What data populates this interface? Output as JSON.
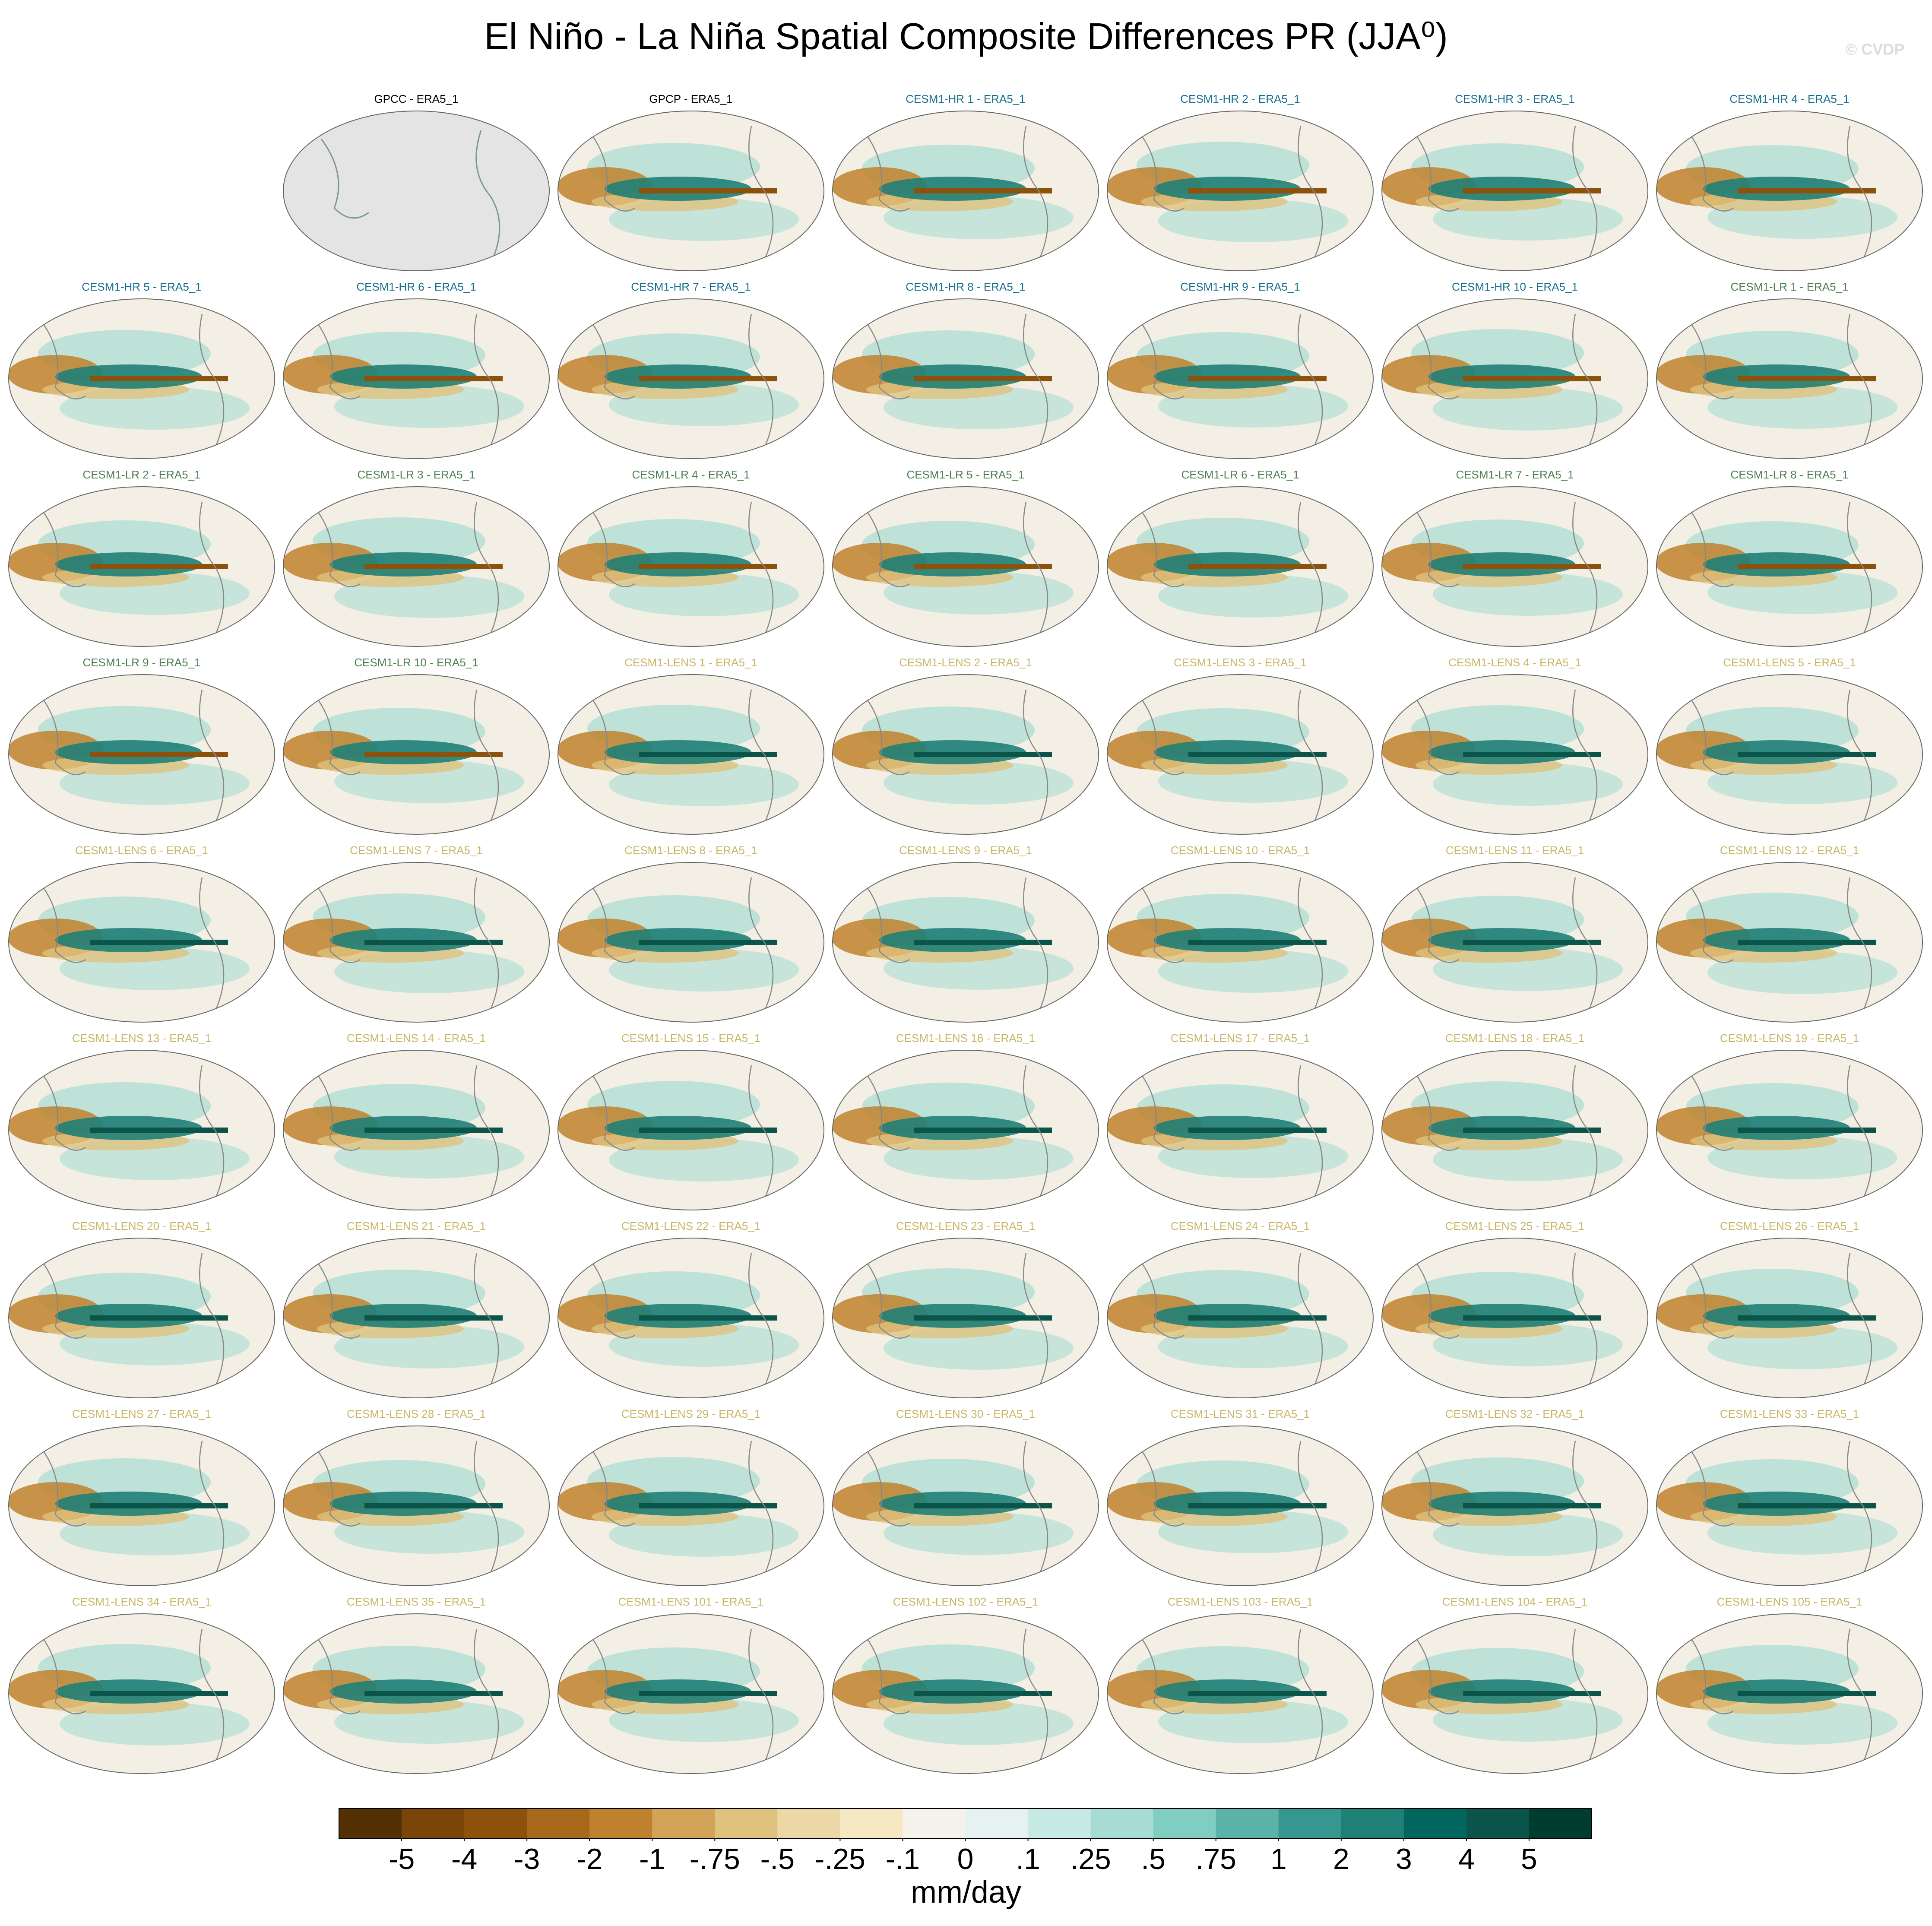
{
  "chart_data": {
    "type": "map-panels",
    "title": "El Niño - La Niña Spatial Composite Differences PR (JJA⁰)",
    "watermark": "© CVDP",
    "panels": [
      {
        "title": "GPCC - ERA5_1",
        "color": "#000000"
      },
      {
        "title": "GPCP - ERA5_1",
        "color": "#000000"
      },
      {
        "title": "CESM1-HR 1 - ERA5_1",
        "color": "#17708f"
      },
      {
        "title": "CESM1-HR 2 - ERA5_1",
        "color": "#17708f"
      },
      {
        "title": "CESM1-HR 3 - ERA5_1",
        "color": "#17708f"
      },
      {
        "title": "CESM1-HR 4 - ERA5_1",
        "color": "#17708f"
      },
      {
        "title": "CESM1-HR 5 - ERA5_1",
        "color": "#17708f"
      },
      {
        "title": "CESM1-HR 6 - ERA5_1",
        "color": "#17708f"
      },
      {
        "title": "CESM1-HR 7 - ERA5_1",
        "color": "#17708f"
      },
      {
        "title": "CESM1-HR 8 - ERA5_1",
        "color": "#17708f"
      },
      {
        "title": "CESM1-HR 9 - ERA5_1",
        "color": "#17708f"
      },
      {
        "title": "CESM1-HR 10 - ERA5_1",
        "color": "#17708f"
      },
      {
        "title": "CESM1-LR 1 - ERA5_1",
        "color": "#4f7f50"
      },
      {
        "title": "CESM1-LR 2 - ERA5_1",
        "color": "#4f7f50"
      },
      {
        "title": "CESM1-LR 3 - ERA5_1",
        "color": "#4f7f50"
      },
      {
        "title": "CESM1-LR 4 - ERA5_1",
        "color": "#4f7f50"
      },
      {
        "title": "CESM1-LR 5 - ERA5_1",
        "color": "#4f7f50"
      },
      {
        "title": "CESM1-LR 6 - ERA5_1",
        "color": "#4f7f50"
      },
      {
        "title": "CESM1-LR 7 - ERA5_1",
        "color": "#4f7f50"
      },
      {
        "title": "CESM1-LR 8 - ERA5_1",
        "color": "#4f7f50"
      },
      {
        "title": "CESM1-LR 9 - ERA5_1",
        "color": "#4f7f50"
      },
      {
        "title": "CESM1-LR 10 - ERA5_1",
        "color": "#4f7f50"
      },
      {
        "title": "CESM1-LENS 1 - ERA5_1",
        "color": "#c9b767"
      },
      {
        "title": "CESM1-LENS 2 - ERA5_1",
        "color": "#c9b767"
      },
      {
        "title": "CESM1-LENS 3 - ERA5_1",
        "color": "#c9b767"
      },
      {
        "title": "CESM1-LENS 4 - ERA5_1",
        "color": "#c9b767"
      },
      {
        "title": "CESM1-LENS 5 - ERA5_1",
        "color": "#c9b767"
      },
      {
        "title": "CESM1-LENS 6 - ERA5_1",
        "color": "#c9b767"
      },
      {
        "title": "CESM1-LENS 7 - ERA5_1",
        "color": "#c9b767"
      },
      {
        "title": "CESM1-LENS 8 - ERA5_1",
        "color": "#c9b767"
      },
      {
        "title": "CESM1-LENS 9 - ERA5_1",
        "color": "#c9b767"
      },
      {
        "title": "CESM1-LENS 10 - ERA5_1",
        "color": "#c9b767"
      },
      {
        "title": "CESM1-LENS 11 - ERA5_1",
        "color": "#c9b767"
      },
      {
        "title": "CESM1-LENS 12 - ERA5_1",
        "color": "#c9b767"
      },
      {
        "title": "CESM1-LENS 13 - ERA5_1",
        "color": "#c9b767"
      },
      {
        "title": "CESM1-LENS 14 - ERA5_1",
        "color": "#c9b767"
      },
      {
        "title": "CESM1-LENS 15 - ERA5_1",
        "color": "#c9b767"
      },
      {
        "title": "CESM1-LENS 16 - ERA5_1",
        "color": "#c9b767"
      },
      {
        "title": "CESM1-LENS 17 - ERA5_1",
        "color": "#c9b767"
      },
      {
        "title": "CESM1-LENS 18 - ERA5_1",
        "color": "#c9b767"
      },
      {
        "title": "CESM1-LENS 19 - ERA5_1",
        "color": "#c9b767"
      },
      {
        "title": "CESM1-LENS 20 - ERA5_1",
        "color": "#c9b767"
      },
      {
        "title": "CESM1-LENS 21 - ERA5_1",
        "color": "#c9b767"
      },
      {
        "title": "CESM1-LENS 22 - ERA5_1",
        "color": "#c9b767"
      },
      {
        "title": "CESM1-LENS 23 - ERA5_1",
        "color": "#c9b767"
      },
      {
        "title": "CESM1-LENS 24 - ERA5_1",
        "color": "#c9b767"
      },
      {
        "title": "CESM1-LENS 25 - ERA5_1",
        "color": "#c9b767"
      },
      {
        "title": "CESM1-LENS 26 - ERA5_1",
        "color": "#c9b767"
      },
      {
        "title": "CESM1-LENS 27 - ERA5_1",
        "color": "#c9b767"
      },
      {
        "title": "CESM1-LENS 28 - ERA5_1",
        "color": "#c9b767"
      },
      {
        "title": "CESM1-LENS 29 - ERA5_1",
        "color": "#c9b767"
      },
      {
        "title": "CESM1-LENS 30 - ERA5_1",
        "color": "#c9b767"
      },
      {
        "title": "CESM1-LENS 31 - ERA5_1",
        "color": "#c9b767"
      },
      {
        "title": "CESM1-LENS 32 - ERA5_1",
        "color": "#c9b767"
      },
      {
        "title": "CESM1-LENS 33 - ERA5_1",
        "color": "#c9b767"
      },
      {
        "title": "CESM1-LENS 34 - ERA5_1",
        "color": "#c9b767"
      },
      {
        "title": "CESM1-LENS 35 - ERA5_1",
        "color": "#c9b767"
      },
      {
        "title": "CESM1-LENS 101 - ERA5_1",
        "color": "#c9b767"
      },
      {
        "title": "CESM1-LENS 102 - ERA5_1",
        "color": "#c9b767"
      },
      {
        "title": "CESM1-LENS 103 - ERA5_1",
        "color": "#c9b767"
      },
      {
        "title": "CESM1-LENS 104 - ERA5_1",
        "color": "#c9b767"
      },
      {
        "title": "CESM1-LENS 105 - ERA5_1",
        "color": "#c9b767"
      }
    ],
    "colorbar": {
      "colors": [
        "#543005",
        "#7a4508",
        "#8c510a",
        "#a8691c",
        "#bf812d",
        "#d1a458",
        "#dfc27d",
        "#ecd8a6",
        "#f6e8c3",
        "#f5f2ec",
        "#e5f2ef",
        "#c7eae5",
        "#a6dcd3",
        "#80cdc1",
        "#5ab2a8",
        "#35978f",
        "#1f8077",
        "#01665e",
        "#0a5449",
        "#003c30"
      ],
      "ticks": [
        -5,
        -4,
        -3,
        -2,
        -1,
        {
          "value": -0.75,
          "label": "-.75"
        },
        {
          "value": -0.5,
          "label": "-.5"
        },
        {
          "value": -0.25,
          "label": "-.25"
        },
        {
          "value": -0.1,
          "label": "-.1"
        },
        0,
        {
          "value": 0.1,
          "label": ".1"
        },
        {
          "value": 0.25,
          "label": ".25"
        },
        {
          "value": 0.5,
          "label": ".5"
        },
        {
          "value": 0.75,
          "label": ".75"
        },
        1,
        2,
        3,
        4,
        5
      ],
      "label": "mm/day"
    }
  }
}
